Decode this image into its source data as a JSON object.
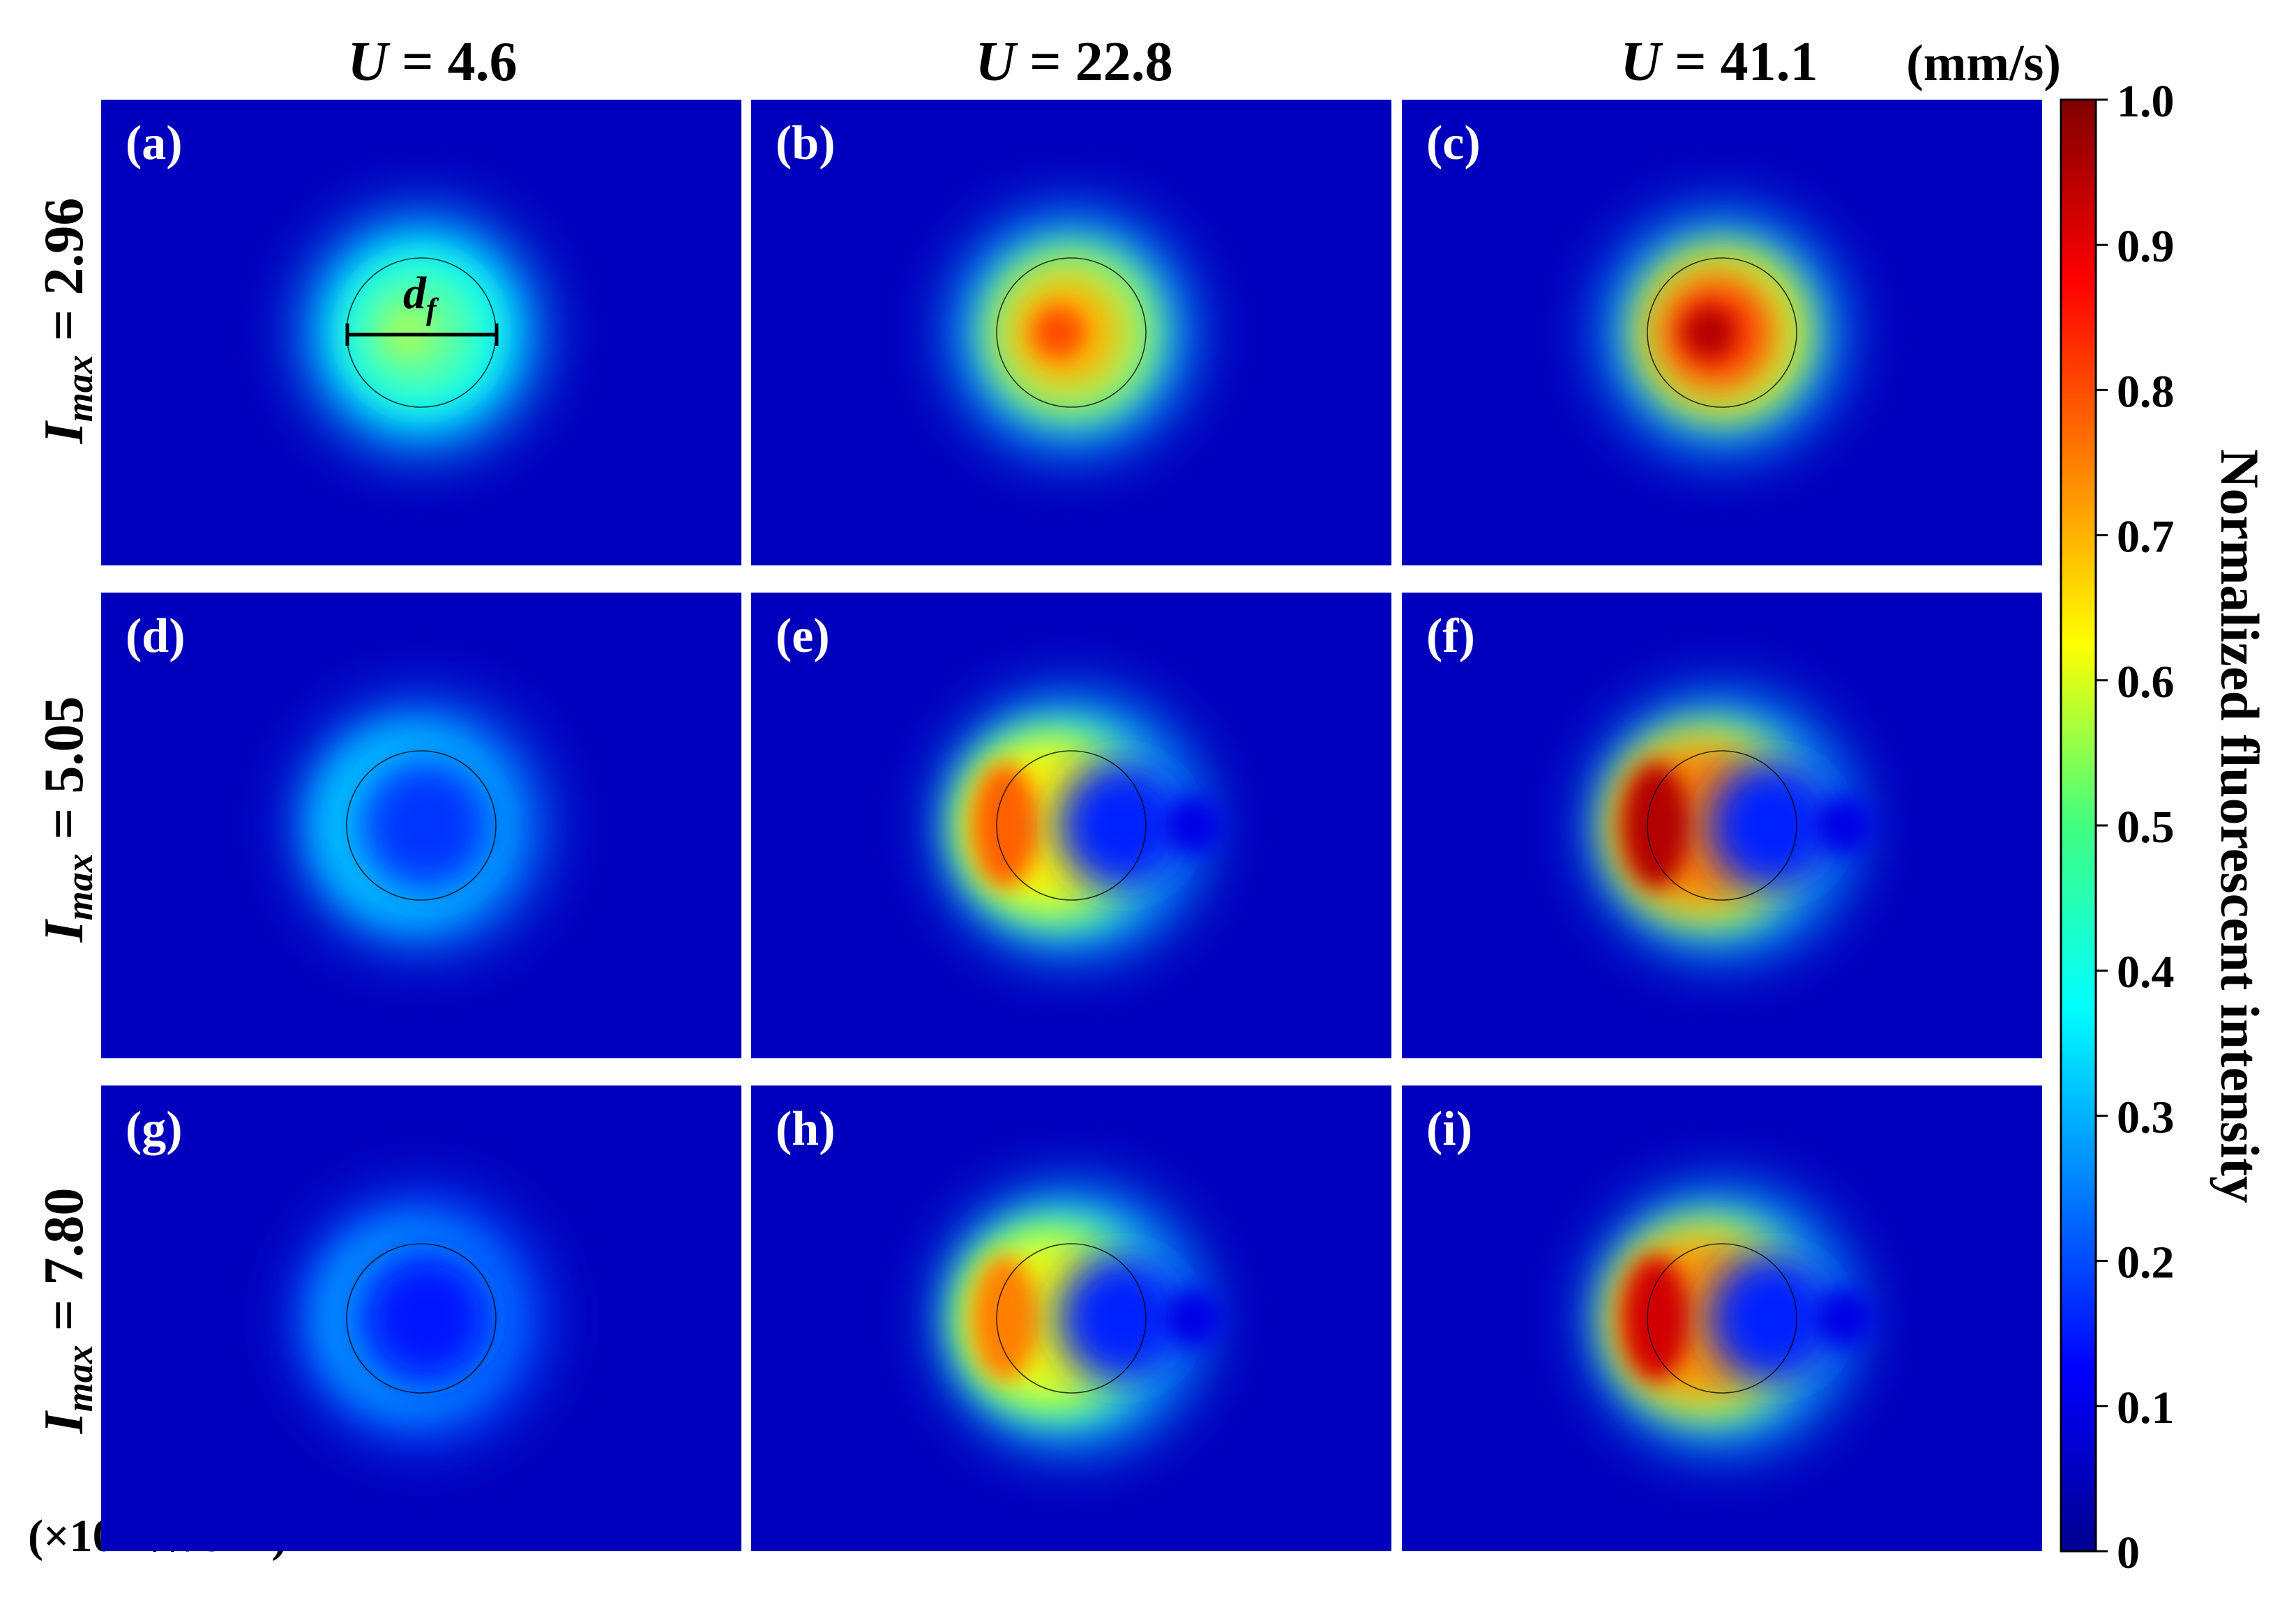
{
  "chart_data": {
    "type": "heatmap",
    "columns": [
      {
        "var": "U",
        "eq": " = 4.6"
      },
      {
        "var": "U",
        "eq": " = 22.8"
      },
      {
        "var": "U",
        "eq": " = 41.1"
      }
    ],
    "column_unit": "(mm/s)",
    "rows": [
      {
        "var": "I",
        "sub": "max",
        "eq": " = 2.96"
      },
      {
        "var": "I",
        "sub": "max",
        "eq": " = 5.05"
      },
      {
        "var": "I",
        "sub": "max",
        "eq": " = 7.80"
      }
    ],
    "row_unit": {
      "prefix": "(×",
      "base": "10",
      "exp": "7",
      "mid": " W/cm",
      "exp2": "2",
      "suffix": ")"
    },
    "panels": [
      {
        "label": "(a)",
        "type": "disk",
        "peak": 0.52
      },
      {
        "label": "(b)",
        "type": "disk",
        "peak": 0.8
      },
      {
        "label": "(c)",
        "type": "disk",
        "peak": 0.95
      },
      {
        "label": "(d)",
        "type": "ring",
        "peak": 0.32
      },
      {
        "label": "(e)",
        "type": "crescent",
        "peak": 0.78
      },
      {
        "label": "(f)",
        "type": "crescent",
        "peak": 0.95
      },
      {
        "label": "(g)",
        "type": "ring",
        "peak": 0.27
      },
      {
        "label": "(h)",
        "type": "crescent",
        "peak": 0.75
      },
      {
        "label": "(i)",
        "type": "crescent",
        "peak": 0.92
      }
    ],
    "annotation": {
      "var": "d",
      "sub": "f"
    },
    "colorbar": {
      "label": "Normalized fluorescent intensity",
      "ticks": [
        "1.0",
        "0.9",
        "0.8",
        "0.7",
        "0.6",
        "0.5",
        "0.4",
        "0.3",
        "0.2",
        "0.1",
        "0"
      ],
      "colormap": "jet",
      "range": [
        0,
        1
      ]
    }
  }
}
